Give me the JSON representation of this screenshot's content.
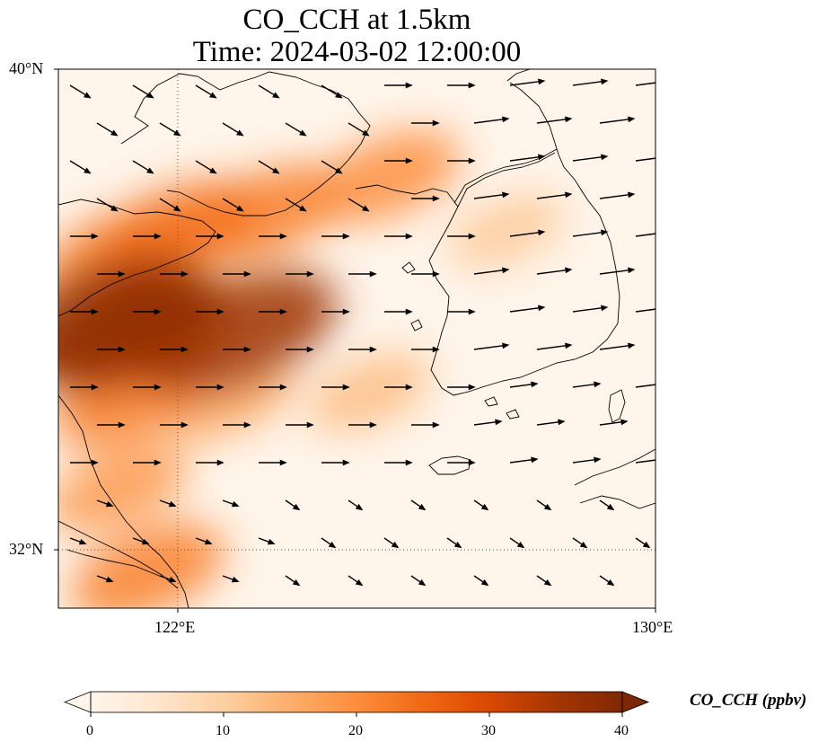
{
  "title_line1": "CO_CCH at 1.5km",
  "title_line2": "Time: 2024-03-02 12:00:00",
  "lat_ticks": [
    "40°N",
    "32°N"
  ],
  "lon_ticks": [
    "122°E",
    "130°E"
  ],
  "colorbar": {
    "label": "CO_CCH (ppbv)",
    "ticks": [
      "0",
      "10",
      "20",
      "30",
      "40"
    ],
    "min": 0,
    "max": 40,
    "extend": "both",
    "colormap": [
      "#fff5eb",
      "#fee6ce",
      "#fdd0a2",
      "#fdae6b",
      "#fd8d3c",
      "#f16913",
      "#d94801",
      "#a63603",
      "#7f2704"
    ]
  },
  "map_extent": {
    "lon": [
      120,
      130
    ],
    "lat": [
      31,
      40
    ]
  },
  "gridlines": {
    "lon": [
      122
    ],
    "lat": [
      32
    ],
    "style": "dotted"
  },
  "plumes": [
    {
      "lon": 120.8,
      "lat": 35.8,
      "value": 38
    },
    {
      "lon": 121.3,
      "lat": 35.6,
      "value": 34
    },
    {
      "lon": 123.0,
      "lat": 35.6,
      "value": 36
    },
    {
      "lon": 122.0,
      "lat": 37.3,
      "value": 24
    },
    {
      "lon": 123.5,
      "lat": 37.6,
      "value": 22
    },
    {
      "lon": 125.5,
      "lat": 38.2,
      "value": 20
    },
    {
      "lon": 121.0,
      "lat": 36.9,
      "value": 22
    },
    {
      "lon": 121.2,
      "lat": 34.5,
      "value": 22
    },
    {
      "lon": 121.0,
      "lat": 33.0,
      "value": 18
    },
    {
      "lon": 121.5,
      "lat": 31.6,
      "value": 22
    },
    {
      "lon": 122.8,
      "lat": 34.5,
      "value": 16
    },
    {
      "lon": 125.2,
      "lat": 34.6,
      "value": 13
    },
    {
      "lon": 127.5,
      "lat": 37.3,
      "value": 11
    }
  ]
}
